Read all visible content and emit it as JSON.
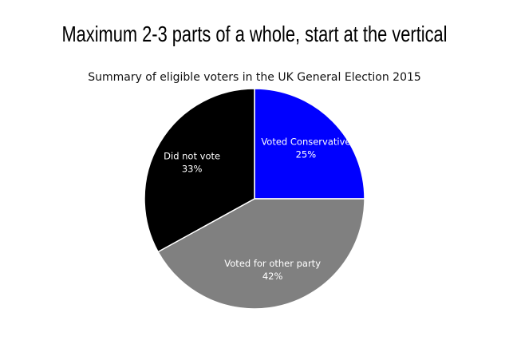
{
  "page": {
    "heading": "Maximum 2-3 parts of a whole, start at the vertical"
  },
  "chart_data": {
    "type": "pie",
    "title": "Summary of eligible voters in the UK General Election 2015",
    "start_angle": "vertical (12 o'clock), clockwise",
    "slices": [
      {
        "label": "Voted Conservative",
        "value": 25,
        "value_label": "25%",
        "color": "#0000ff"
      },
      {
        "label": "Voted for other party",
        "value": 42,
        "value_label": "42%",
        "color": "#808080"
      },
      {
        "label": "Did not vote",
        "value": 33,
        "value_label": "33%",
        "color": "#000000"
      }
    ],
    "slice_border_color": "#ffffff"
  }
}
